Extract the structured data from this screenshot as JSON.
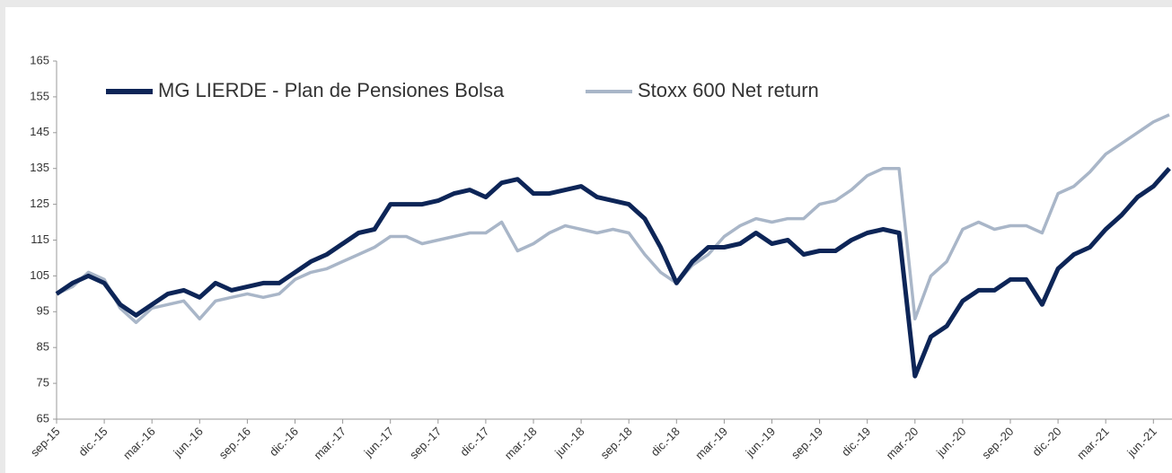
{
  "chart_data": {
    "type": "line",
    "categories": [
      "sep-15",
      null,
      null,
      "dic.-15",
      null,
      null,
      "mar.-16",
      null,
      null,
      "jun.-16",
      null,
      null,
      "sep.-16",
      null,
      null,
      "dic.-16",
      null,
      null,
      "mar.-17",
      null,
      null,
      "jun.-17",
      null,
      null,
      "sep.-17",
      null,
      null,
      "dic.-17",
      null,
      null,
      "mar.-18",
      null,
      null,
      "jun.-18",
      null,
      null,
      "sep.-18",
      null,
      null,
      "dic.-18",
      null,
      null,
      "mar.-19",
      null,
      null,
      "jun.-19",
      null,
      null,
      "sep.-19",
      null,
      null,
      "dic.-19",
      null,
      null,
      "mar.-20",
      null,
      null,
      "jun.-20",
      null,
      null,
      "sep.-20",
      null,
      null,
      "dic.-20",
      null,
      null,
      "mar.-21",
      null,
      null,
      "jun.-21",
      null
    ],
    "series": [
      {
        "name": "MG LIERDE - Plan de Pensiones Bolsa",
        "color": "#0d2557",
        "values": [
          100,
          103,
          105,
          103,
          97,
          94,
          97,
          100,
          101,
          99,
          103,
          101,
          102,
          103,
          103,
          106,
          109,
          111,
          114,
          117,
          118,
          125,
          125,
          125,
          126,
          128,
          129,
          127,
          131,
          132,
          128,
          128,
          129,
          130,
          127,
          126,
          125,
          121,
          113,
          103,
          109,
          113,
          113,
          114,
          117,
          114,
          115,
          111,
          112,
          112,
          115,
          117,
          118,
          117,
          77,
          88,
          91,
          98,
          101,
          101,
          104,
          104,
          97,
          107,
          111,
          113,
          118,
          122,
          127,
          130,
          135
        ]
      },
      {
        "name": "Stoxx 600 Net return",
        "color": "#a9b6c8",
        "values": [
          100,
          102,
          106,
          104,
          96,
          92,
          96,
          97,
          98,
          93,
          98,
          99,
          100,
          99,
          100,
          104,
          106,
          107,
          109,
          111,
          113,
          116,
          116,
          114,
          115,
          116,
          117,
          117,
          120,
          112,
          114,
          117,
          119,
          118,
          117,
          118,
          117,
          111,
          106,
          103,
          108,
          111,
          116,
          119,
          121,
          120,
          121,
          121,
          125,
          126,
          129,
          133,
          135,
          135,
          93,
          105,
          109,
          118,
          120,
          118,
          119,
          119,
          117,
          128,
          130,
          134,
          139,
          142,
          145,
          148,
          150
        ]
      }
    ],
    "ylim": [
      65,
      165
    ],
    "yticks": [
      65,
      75,
      85,
      95,
      105,
      115,
      125,
      135,
      145,
      155,
      165
    ],
    "grid": false
  }
}
